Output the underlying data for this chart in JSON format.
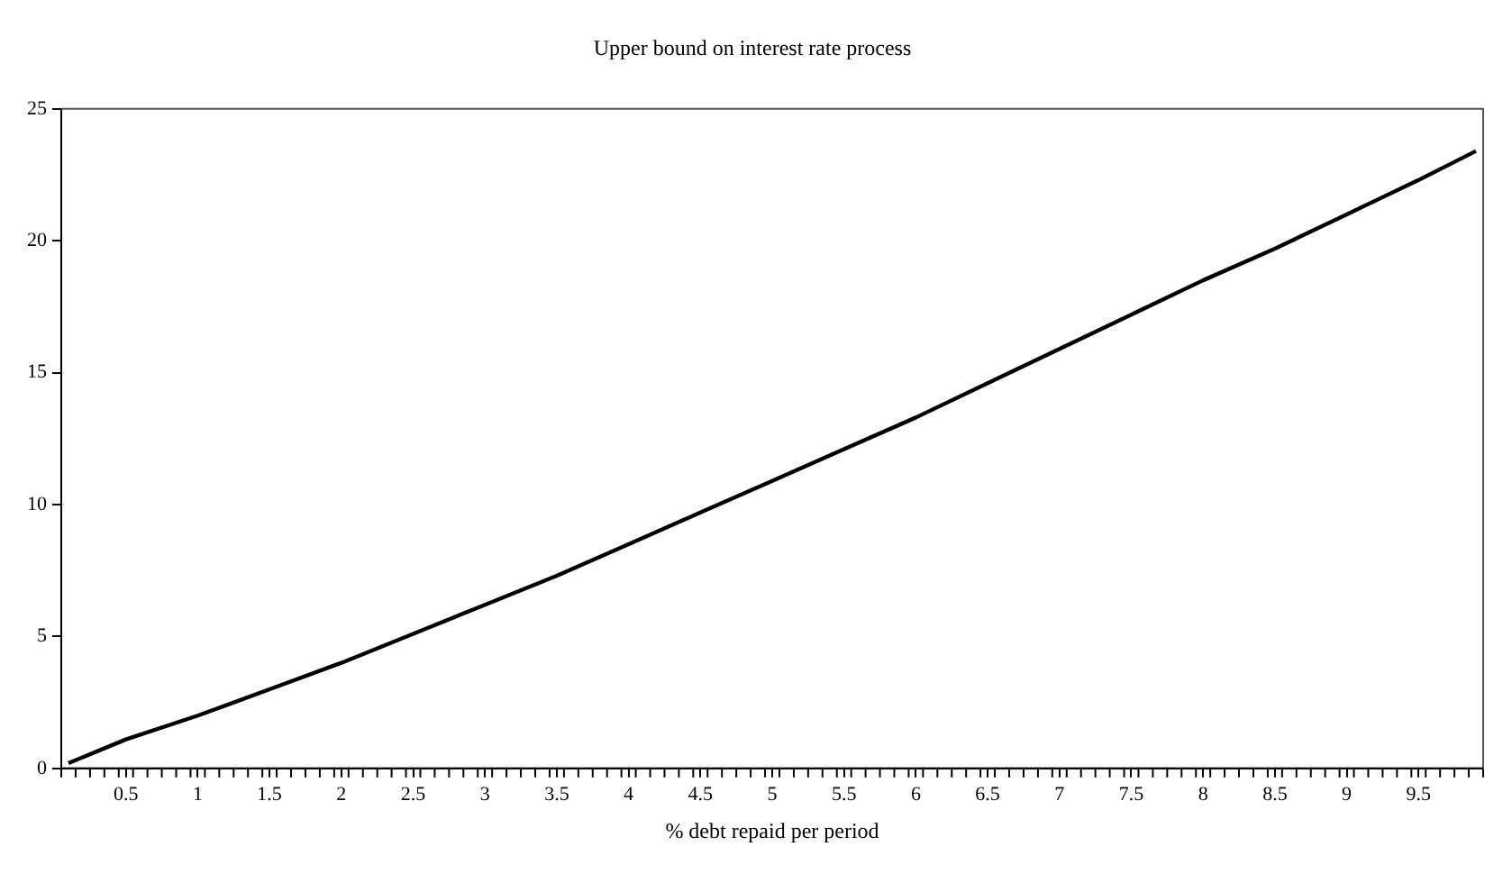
{
  "chart_data": {
    "type": "line",
    "title": "Upper bound on interest rate process",
    "xlabel": "% debt repaid per period",
    "x": [
      0.1,
      0.5,
      1,
      1.5,
      2,
      2.5,
      3,
      3.5,
      4,
      4.5,
      5,
      5.5,
      6,
      6.5,
      7,
      7.5,
      8,
      8.5,
      9,
      9.5,
      9.9
    ],
    "series": [
      {
        "color": "#000000",
        "values": [
          0.2,
          1.1,
          2.0,
          3.0,
          4.0,
          5.1,
          6.2,
          7.3,
          8.5,
          9.7,
          10.9,
          12.1,
          13.3,
          14.6,
          15.9,
          17.2,
          18.5,
          19.7,
          21.0,
          22.3,
          23.4
        ]
      }
    ],
    "xlim": [
      0.05,
      9.95
    ],
    "xticks": [
      0.5,
      1,
      1.5,
      2,
      2.5,
      3,
      3.5,
      4,
      4.5,
      5,
      5.5,
      6,
      6.5,
      7,
      7.5,
      8,
      8.5,
      9,
      9.5
    ],
    "ylim": [
      0,
      25
    ],
    "yticks": [
      0,
      5,
      10,
      15,
      20,
      25
    ],
    "grid": false,
    "legend": false,
    "marker": "none",
    "line_style": "solid"
  }
}
